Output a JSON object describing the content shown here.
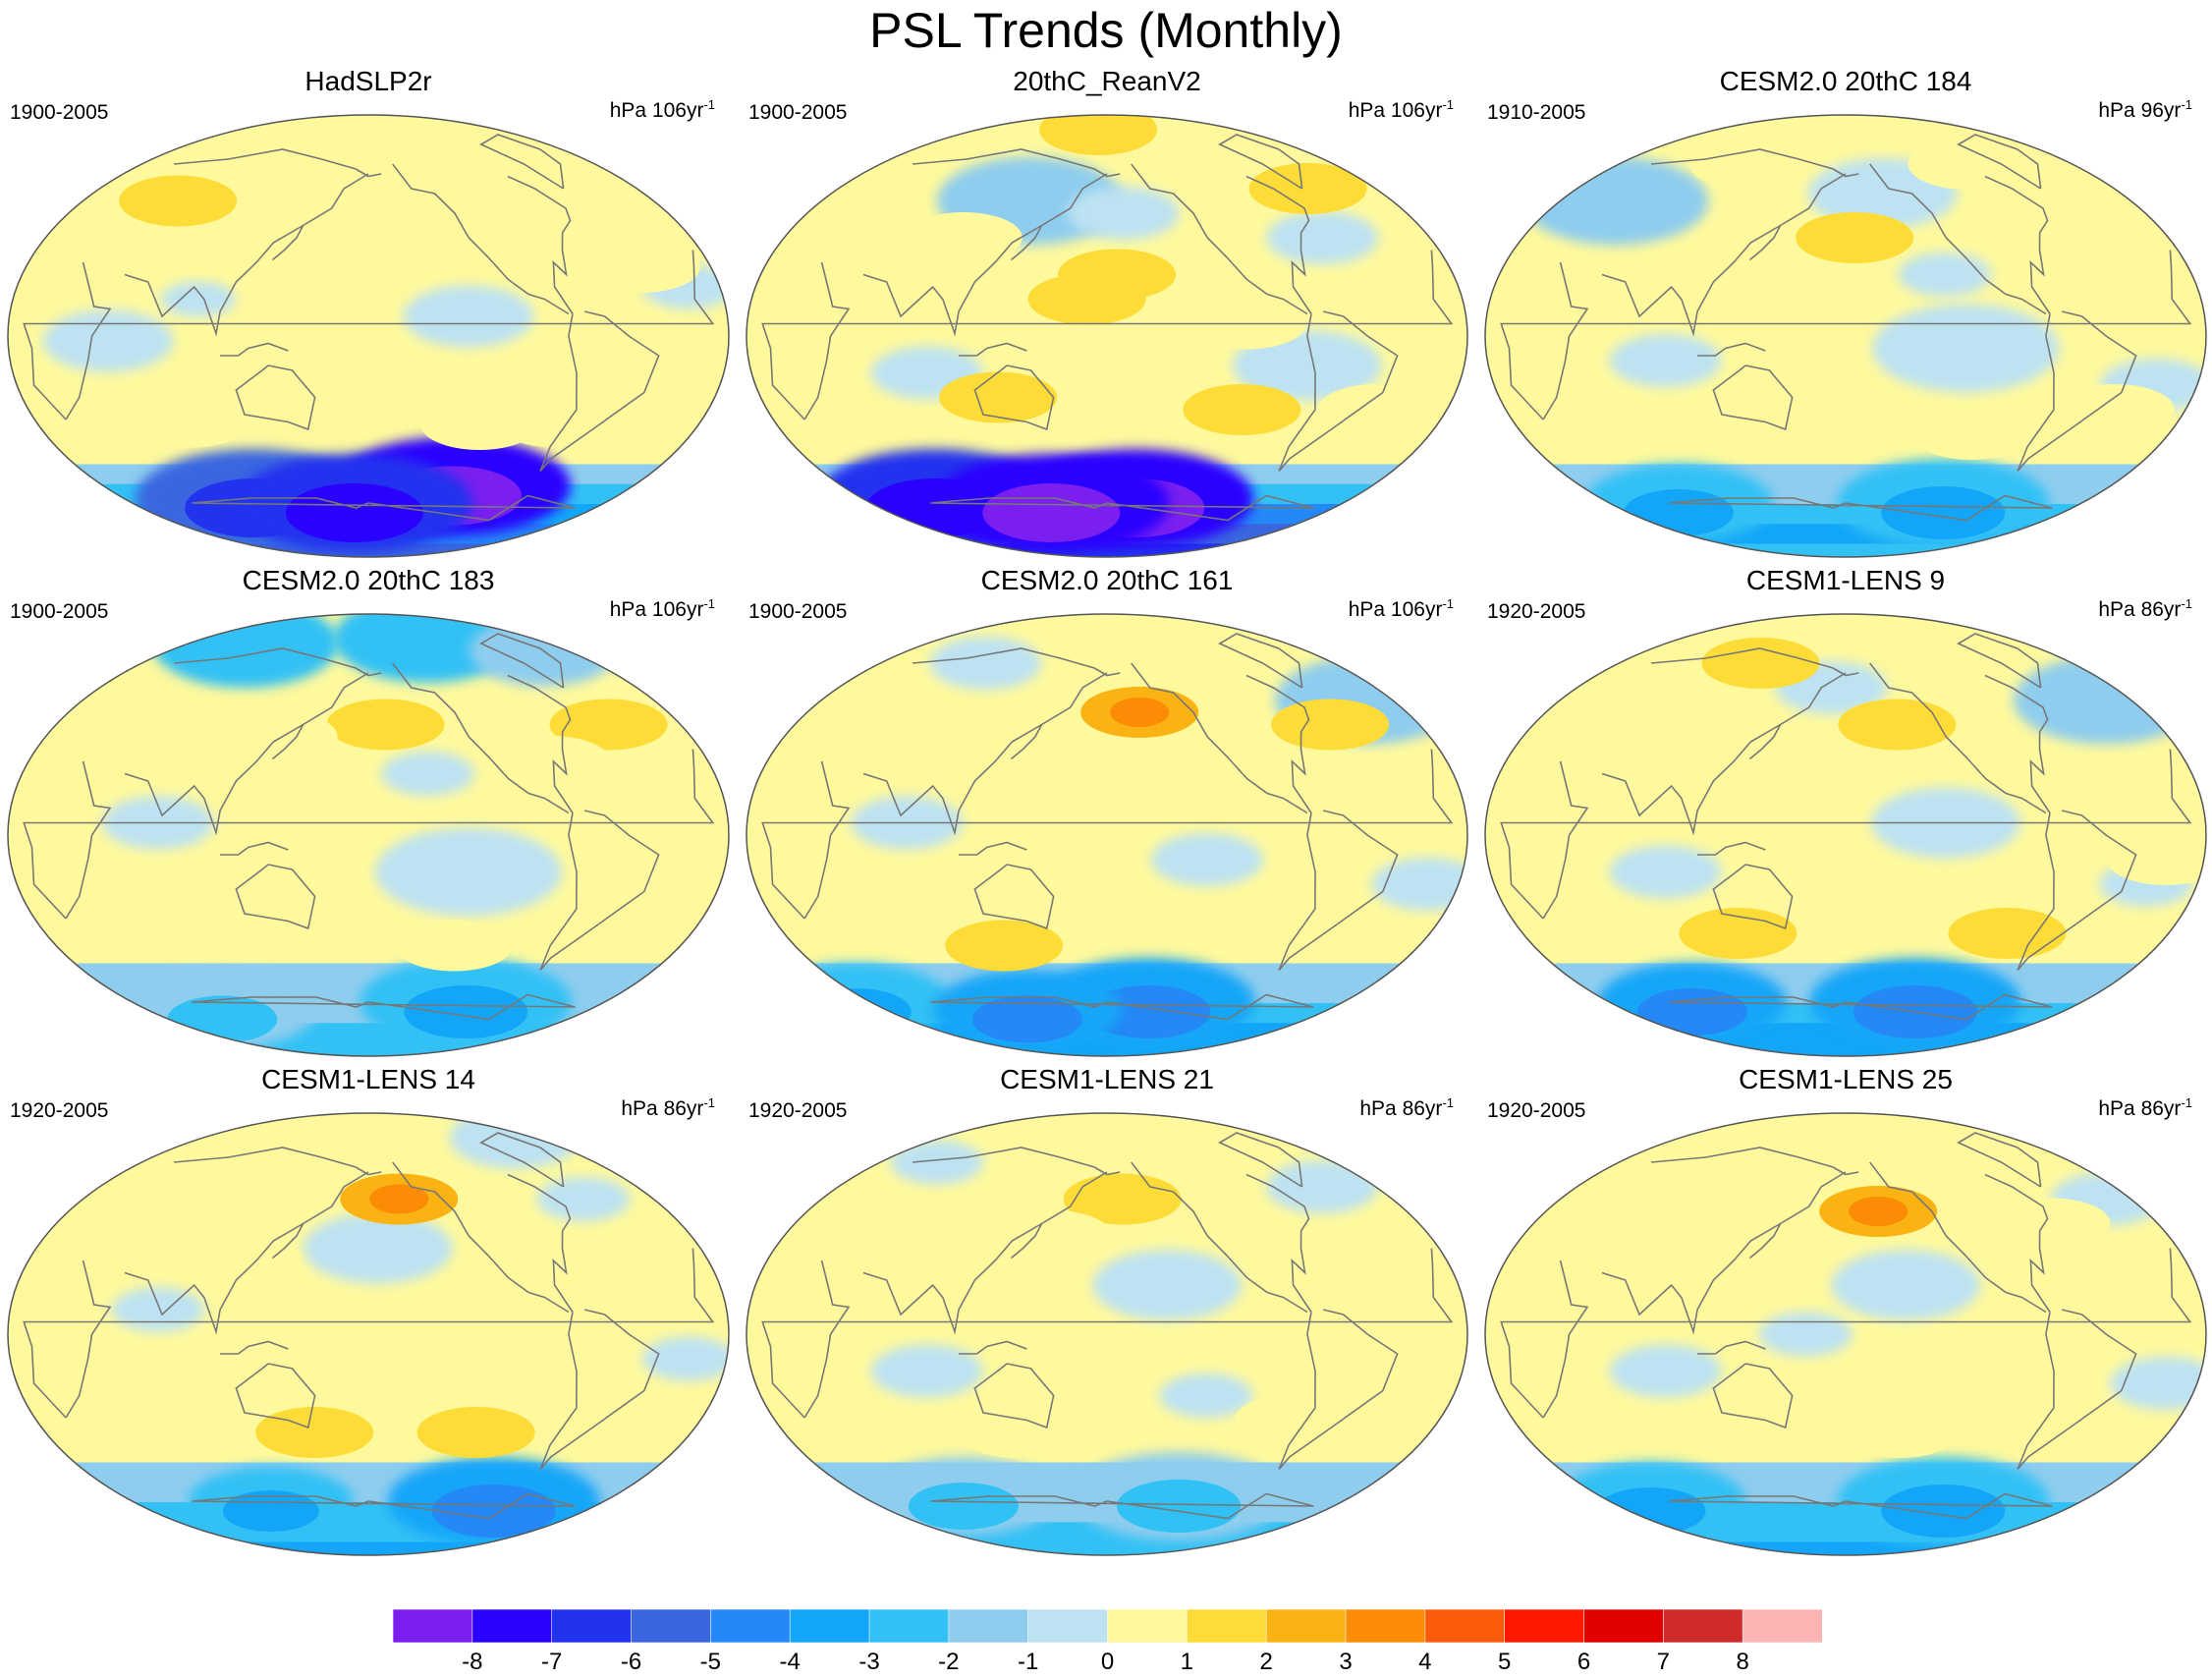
{
  "title": "PSL Trends (Monthly)",
  "panels": [
    {
      "title": "HadSLP2r",
      "period": "1900-2005",
      "units": "hPa 106yr",
      "units_exp": "-1",
      "highs": [
        [
          58,
          -38,
          1
        ],
        [
          55,
          56,
          2
        ],
        [
          28,
          -40,
          1
        ],
        [
          -35,
          -80,
          1
        ],
        [
          -36,
          10,
          1
        ],
        [
          -36,
          -120,
          1
        ],
        [
          -35,
          85,
          1
        ]
      ],
      "lows": [
        [
          8,
          -130,
          -1,
          0.7
        ],
        [
          -2,
          50,
          -1,
          0.7
        ],
        [
          20,
          -20,
          -1,
          0.5
        ],
        [
          15,
          95,
          -1,
          0.4
        ]
      ],
      "south": [
        -1,
        -2,
        -3,
        -4,
        -5
      ],
      "anom": [
        [
          -55,
          -125,
          -8,
          1
        ],
        [
          -60,
          100,
          -6,
          1
        ],
        [
          -62,
          170,
          -7,
          1
        ]
      ]
    },
    {
      "title": "20thC_ReanV2",
      "period": "1900-2005",
      "units": "hPa 106yr",
      "units_exp": "-1",
      "highs": [
        [
          84,
          170,
          2
        ],
        [
          60,
          -40,
          2
        ],
        [
          5,
          -110,
          1
        ],
        [
          15,
          170,
          2
        ],
        [
          25,
          -175,
          2
        ],
        [
          40,
          100,
          1
        ],
        [
          -25,
          125,
          2
        ],
        [
          -30,
          -40,
          1
        ],
        [
          -30,
          -110,
          2
        ],
        [
          -25,
          30,
          1
        ]
      ],
      "lows": [
        [
          55,
          130,
          -2,
          1
        ],
        [
          50,
          -170,
          -1,
          0.6
        ],
        [
          -12,
          -80,
          -1,
          0.8
        ],
        [
          40,
          -60,
          -1,
          0.6
        ],
        [
          -15,
          90,
          -1,
          0.6
        ]
      ],
      "south": [
        -1,
        -2,
        -4,
        -5,
        -6
      ],
      "anom": [
        [
          -60,
          -160,
          -8,
          1
        ],
        [
          -60,
          60,
          -7,
          1
        ],
        [
          -62,
          140,
          -8,
          1
        ]
      ]
    },
    {
      "title": "CESM2.0 20thC 184",
      "period": "1910-2005",
      "units": "hPa 96yr",
      "units_exp": "-1",
      "highs": [
        [
          40,
          -175,
          2
        ],
        [
          70,
          -80,
          1
        ],
        [
          -40,
          165,
          1
        ],
        [
          -40,
          -110,
          1
        ],
        [
          -35,
          70,
          1
        ],
        [
          70,
          100,
          1
        ],
        [
          20,
          -30,
          1
        ],
        [
          -30,
          -40,
          1
        ]
      ],
      "lows": [
        [
          55,
          30,
          -2,
          1
        ],
        [
          58,
          -155,
          -1,
          0.8
        ],
        [
          -5,
          -120,
          -1,
          1
        ],
        [
          -10,
          90,
          -1,
          0.6
        ],
        [
          -20,
          -25,
          -1,
          0.6
        ],
        [
          25,
          -130,
          -1,
          0.5
        ]
      ],
      "south": [
        -1,
        -1,
        -2,
        -3,
        -2
      ],
      "anom": [
        [
          -62,
          -110,
          -3,
          0.9
        ],
        [
          -62,
          60,
          -3,
          0.8
        ]
      ]
    },
    {
      "title": "CESM2.0 20thC 183",
      "period": "1900-2005",
      "units": "hPa 106yr",
      "units_exp": "-1",
      "highs": [
        [
          45,
          -170,
          2
        ],
        [
          45,
          -40,
          2
        ],
        [
          40,
          130,
          1
        ],
        [
          -45,
          -130,
          1
        ],
        [
          -35,
          30,
          1
        ],
        [
          -30,
          90,
          1
        ],
        [
          10,
          -20,
          1
        ],
        [
          30,
          -85,
          1
        ]
      ],
      "lows": [
        [
          78,
          60,
          -3,
          1
        ],
        [
          80,
          -120,
          -3,
          1
        ],
        [
          75,
          -20,
          -2,
          0.8
        ],
        [
          -15,
          -130,
          -1,
          1
        ],
        [
          5,
          75,
          -1,
          0.6
        ],
        [
          25,
          -150,
          -1,
          0.5
        ]
      ],
      "south": [
        -1,
        -1,
        -1,
        -2,
        -2
      ],
      "anom": [
        [
          -62,
          -110,
          -3,
          0.9
        ],
        [
          -65,
          70,
          -2,
          0.8
        ]
      ]
    },
    {
      "title": "CESM2.0 20thC 161",
      "period": "1900-2005",
      "units": "hPa 106yr",
      "units_exp": "-1",
      "highs": [
        [
          50,
          -160,
          3
        ],
        [
          45,
          -50,
          2
        ],
        [
          40,
          130,
          1
        ],
        [
          -45,
          120,
          2
        ],
        [
          -40,
          -60,
          1
        ],
        [
          10,
          20,
          1
        ],
        [
          25,
          -110,
          1
        ]
      ],
      "lows": [
        [
          55,
          -10,
          -2,
          1
        ],
        [
          -10,
          -130,
          -1,
          0.6
        ],
        [
          -20,
          -20,
          -1,
          0.6
        ],
        [
          5,
          80,
          -1,
          0.6
        ],
        [
          70,
          80,
          -1,
          0.6
        ]
      ],
      "south": [
        -1,
        -1,
        -2,
        -3,
        -3
      ],
      "anom": [
        [
          -62,
          -150,
          -4,
          0.9
        ],
        [
          -62,
          0,
          -3,
          0.8
        ],
        [
          -65,
          120,
          -4,
          0.8
        ]
      ]
    },
    {
      "title": "CESM1-LENS 9",
      "period": "1920-2005",
      "units": "hPa 86yr",
      "units_exp": "-1",
      "highs": [
        [
          70,
          110,
          2
        ],
        [
          45,
          -150,
          2
        ],
        [
          -40,
          120,
          2
        ],
        [
          -40,
          -90,
          2
        ],
        [
          -40,
          50,
          1
        ],
        [
          30,
          100,
          1
        ],
        [
          -10,
          -20,
          1
        ],
        [
          20,
          -50,
          1
        ]
      ],
      "lows": [
        [
          55,
          -10,
          -2,
          1
        ],
        [
          60,
          170,
          -1,
          0.6
        ],
        [
          5,
          -130,
          -1,
          0.8
        ],
        [
          -15,
          90,
          -1,
          0.6
        ],
        [
          -20,
          -30,
          -1,
          0.5
        ]
      ],
      "south": [
        -1,
        -1,
        -2,
        -3,
        -3
      ],
      "anom": [
        [
          -62,
          -130,
          -4,
          0.9
        ],
        [
          -62,
          70,
          -4,
          0.8
        ]
      ]
    },
    {
      "title": "CESM1-LENS 14",
      "period": "1920-2005",
      "units": "hPa 86yr",
      "units_exp": "-1",
      "highs": [
        [
          55,
          -160,
          3
        ],
        [
          30,
          115,
          1
        ],
        [
          -40,
          150,
          2
        ],
        [
          -40,
          -120,
          2
        ],
        [
          -35,
          30,
          1
        ],
        [
          -10,
          -110,
          1
        ],
        [
          70,
          40,
          1
        ]
      ],
      "lows": [
        [
          35,
          -175,
          -1,
          0.8
        ],
        [
          80,
          -30,
          -1,
          0.7
        ],
        [
          -10,
          -20,
          -1,
          0.5
        ],
        [
          10,
          75,
          -1,
          0.5
        ],
        [
          55,
          -40,
          -1,
          0.5
        ]
      ],
      "south": [
        -1,
        -1,
        -2,
        -2,
        -3
      ],
      "anom": [
        [
          -62,
          -90,
          -4,
          0.9
        ],
        [
          -62,
          110,
          -3,
          0.7
        ]
      ]
    },
    {
      "title": "CESM1-LENS 21",
      "period": "1920-2005",
      "units": "hPa 86yr",
      "units_exp": "-1",
      "highs": [
        [
          55,
          -170,
          2
        ],
        [
          40,
          150,
          1
        ],
        [
          -40,
          130,
          1
        ],
        [
          -35,
          -80,
          1
        ],
        [
          10,
          -50,
          1
        ],
        [
          30,
          60,
          1
        ]
      ],
      "lows": [
        [
          20,
          -150,
          -1,
          0.8
        ],
        [
          60,
          -30,
          -1,
          0.6
        ],
        [
          -15,
          90,
          -1,
          0.6
        ],
        [
          -25,
          -130,
          -1,
          0.5
        ],
        [
          70,
          40,
          -1,
          0.5
        ]
      ],
      "south": [
        -1,
        -1,
        -1,
        -2,
        -2
      ],
      "anom": [
        [
          -60,
          -130,
          -2,
          0.9
        ],
        [
          -60,
          80,
          -2,
          0.8
        ]
      ]
    },
    {
      "title": "CESM1-LENS 25",
      "period": "1920-2005",
      "units": "hPa 86yr",
      "units_exp": "-1",
      "highs": [
        [
          50,
          -160,
          3
        ],
        [
          45,
          -60,
          1
        ],
        [
          70,
          130,
          1
        ],
        [
          -40,
          -150,
          1
        ],
        [
          -40,
          140,
          1
        ],
        [
          30,
          100,
          1
        ],
        [
          -20,
          -80,
          1
        ]
      ],
      "lows": [
        [
          20,
          -150,
          -1,
          0.8
        ],
        [
          55,
          -10,
          -1,
          0.6
        ],
        [
          -15,
          90,
          -1,
          0.6
        ],
        [
          -20,
          -20,
          -1,
          0.6
        ],
        [
          0,
          160,
          -1,
          0.5
        ]
      ],
      "south": [
        -1,
        -1,
        -2,
        -2,
        -3
      ],
      "anom": [
        [
          -62,
          -110,
          -3,
          0.9
        ],
        [
          -62,
          40,
          -3,
          0.8
        ]
      ]
    }
  ],
  "colorbar": {
    "levels": [
      "-8",
      "-7",
      "-6",
      "-5",
      "-4",
      "-3",
      "-2",
      "-1",
      "0",
      "1",
      "2",
      "3",
      "4",
      "5",
      "6",
      "7",
      "8"
    ],
    "colors": [
      "#7a1ff0",
      "#2a00ff",
      "#2233ee",
      "#3a66e0",
      "#2488f7",
      "#13a6f8",
      "#32c1f5",
      "#8fcdee",
      "#bde2f2",
      "#fef99d",
      "#fedc38",
      "#fab312",
      "#fc8b05",
      "#fd5b0c",
      "#fd1a00",
      "#e00000",
      "#d02b2b",
      "#fcb4b4"
    ]
  }
}
